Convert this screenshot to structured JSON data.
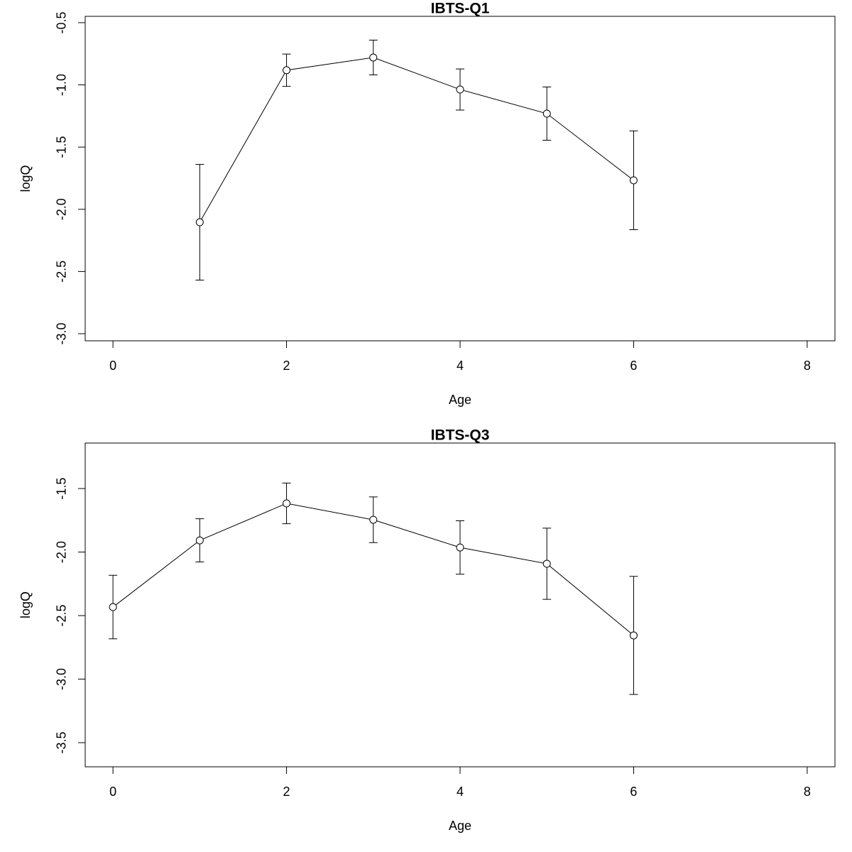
{
  "chart_data": [
    {
      "type": "line",
      "title": "IBTS-Q1",
      "xlabel": "Age",
      "ylabel": "logQ",
      "color": "#000000",
      "x": [
        1,
        2,
        3,
        4,
        5,
        6
      ],
      "values": [
        -2.104,
        -0.882,
        -0.78,
        -1.037,
        -1.231,
        -1.767
      ],
      "errors": [
        0.465,
        0.13,
        0.14,
        0.165,
        0.214,
        0.397
      ],
      "xlim": [
        -0.32,
        8.32
      ],
      "ylim": [
        -3.057,
        -0.449
      ],
      "xticks": [
        0,
        2,
        4,
        6,
        8
      ],
      "yticks": [
        -0.5,
        {
          "value": -1,
          "label": "-1.0"
        },
        -1.5,
        {
          "value": -2,
          "label": "-2.0"
        },
        -2.5,
        {
          "value": -3,
          "label": "-3.0"
        }
      ]
    },
    {
      "type": "line",
      "title": "IBTS-Q3",
      "xlabel": "Age",
      "ylabel": "logQ",
      "color": "#000000",
      "x": [
        0,
        1,
        2,
        3,
        4,
        5,
        6
      ],
      "values": [
        -2.433,
        -1.908,
        -1.617,
        -1.746,
        -1.964,
        -2.092,
        -2.656
      ],
      "errors": [
        0.25,
        0.17,
        0.16,
        0.18,
        0.21,
        0.28,
        0.465
      ],
      "xlim": [
        -0.32,
        8.32
      ],
      "ylim": [
        -3.69,
        -1.142
      ],
      "xticks": [
        0,
        2,
        4,
        6,
        8
      ],
      "yticks": [
        -1.5,
        {
          "value": -2,
          "label": "-2.0"
        },
        -2.5,
        {
          "value": -3,
          "label": "-3.0"
        },
        -3.5
      ]
    }
  ]
}
